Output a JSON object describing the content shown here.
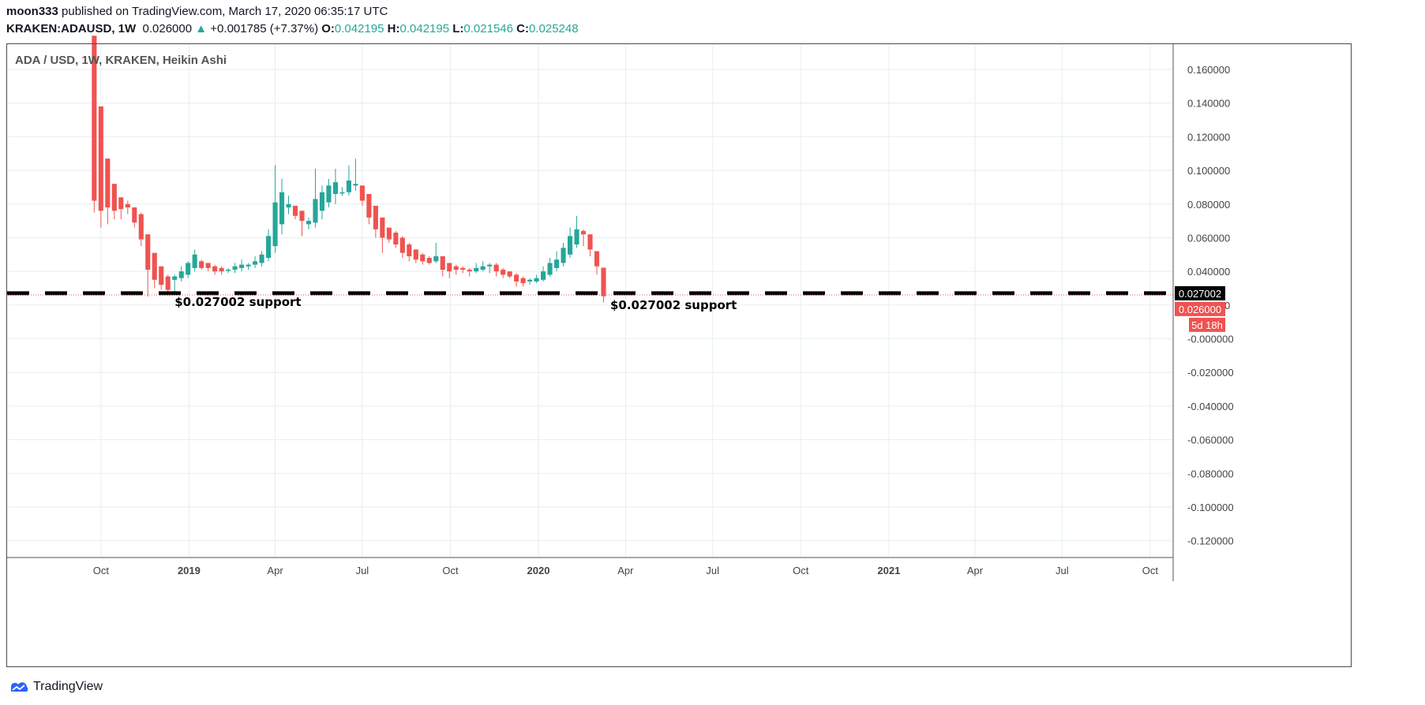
{
  "header": {
    "author": "moon333",
    "published_text": "published on TradingView.com, March 17, 2020 06:35:17 UTC",
    "symbol": "KRAKEN:ADAUSD, 1W",
    "last": "0.026000",
    "change": "+0.001785 (+7.37%)",
    "open_label": "O:",
    "open": "0.042195",
    "high_label": "H:",
    "high": "0.042195",
    "low_label": "L:",
    "low": "0.021546",
    "close_label": "C:",
    "close": "0.025248"
  },
  "footer": {
    "brand": "TradingView"
  },
  "colors": {
    "up": "#26a69a",
    "down": "#ef5350",
    "grid": "#e6eef2",
    "support": "#000000"
  },
  "chart_data": {
    "type": "candlestick",
    "title": "ADA / USD, 1W, KRAKEN, Heikin Ashi",
    "ylim": [
      -0.13,
      0.175
    ],
    "y_ticks": [
      0.16,
      0.14,
      0.12,
      0.1,
      0.08,
      0.06,
      0.04,
      0.02,
      0.0,
      -0.02,
      -0.04,
      -0.06,
      -0.08,
      -0.1,
      -0.12
    ],
    "y_tick_labels": [
      "0.160000",
      "0.140000",
      "0.120000",
      "0.100000",
      "0.080000",
      "0.060000",
      "0.040000",
      "0.020000",
      "-0.000000",
      "-0.020000",
      "-0.040000",
      "-0.060000",
      "-0.080000",
      "-0.100000",
      "-0.120000"
    ],
    "x_ticks": [
      {
        "date": "2018-10-01",
        "label": "Oct",
        "bold": false
      },
      {
        "date": "2019-01-01",
        "label": "2019",
        "bold": true
      },
      {
        "date": "2019-04-01",
        "label": "Apr",
        "bold": false
      },
      {
        "date": "2019-07-01",
        "label": "Jul",
        "bold": false
      },
      {
        "date": "2019-10-01",
        "label": "Oct",
        "bold": false
      },
      {
        "date": "2020-01-01",
        "label": "2020",
        "bold": true
      },
      {
        "date": "2020-04-01",
        "label": "Apr",
        "bold": false
      },
      {
        "date": "2020-07-01",
        "label": "Jul",
        "bold": false
      },
      {
        "date": "2020-10-01",
        "label": "Oct",
        "bold": false
      },
      {
        "date": "2021-01-01",
        "label": "2021",
        "bold": true
      },
      {
        "date": "2021-04-01",
        "label": "Apr",
        "bold": false
      },
      {
        "date": "2021-07-01",
        "label": "Jul",
        "bold": false
      },
      {
        "date": "2021-10-01",
        "label": "Oct",
        "bold": false
      }
    ],
    "xlim": [
      "2018-06-25",
      "2021-10-25"
    ],
    "candles": [
      {
        "date": "2018-09-24",
        "o": 0.18,
        "h": 0.18,
        "l": 0.075,
        "c": 0.082
      },
      {
        "date": "2018-10-01",
        "o": 0.138,
        "h": 0.138,
        "l": 0.066,
        "c": 0.076
      },
      {
        "date": "2018-10-08",
        "o": 0.107,
        "h": 0.107,
        "l": 0.068,
        "c": 0.078
      },
      {
        "date": "2018-10-15",
        "o": 0.092,
        "h": 0.092,
        "l": 0.071,
        "c": 0.076
      },
      {
        "date": "2018-10-22",
        "o": 0.084,
        "h": 0.084,
        "l": 0.071,
        "c": 0.077
      },
      {
        "date": "2018-10-29",
        "o": 0.08,
        "h": 0.082,
        "l": 0.074,
        "c": 0.078
      },
      {
        "date": "2018-11-05",
        "o": 0.078,
        "h": 0.078,
        "l": 0.066,
        "c": 0.069
      },
      {
        "date": "2018-11-12",
        "o": 0.074,
        "h": 0.075,
        "l": 0.055,
        "c": 0.059
      },
      {
        "date": "2018-11-19",
        "o": 0.062,
        "h": 0.062,
        "l": 0.025,
        "c": 0.041
      },
      {
        "date": "2018-11-26",
        "o": 0.051,
        "h": 0.051,
        "l": 0.03,
        "c": 0.035
      },
      {
        "date": "2018-12-03",
        "o": 0.043,
        "h": 0.043,
        "l": 0.029,
        "c": 0.032
      },
      {
        "date": "2018-12-10",
        "o": 0.037,
        "h": 0.038,
        "l": 0.027,
        "c": 0.029
      },
      {
        "date": "2018-12-17",
        "o": 0.035,
        "h": 0.038,
        "l": 0.028,
        "c": 0.037
      },
      {
        "date": "2018-12-24",
        "o": 0.036,
        "h": 0.043,
        "l": 0.034,
        "c": 0.04
      },
      {
        "date": "2018-12-31",
        "o": 0.038,
        "h": 0.046,
        "l": 0.036,
        "c": 0.045
      },
      {
        "date": "2019-01-07",
        "o": 0.042,
        "h": 0.053,
        "l": 0.04,
        "c": 0.05
      },
      {
        "date": "2019-01-14",
        "o": 0.046,
        "h": 0.047,
        "l": 0.041,
        "c": 0.042
      },
      {
        "date": "2019-01-21",
        "o": 0.045,
        "h": 0.045,
        "l": 0.04,
        "c": 0.042
      },
      {
        "date": "2019-01-28",
        "o": 0.043,
        "h": 0.044,
        "l": 0.038,
        "c": 0.04
      },
      {
        "date": "2019-02-04",
        "o": 0.042,
        "h": 0.043,
        "l": 0.038,
        "c": 0.04
      },
      {
        "date": "2019-02-11",
        "o": 0.041,
        "h": 0.042,
        "l": 0.039,
        "c": 0.041
      },
      {
        "date": "2019-02-18",
        "o": 0.041,
        "h": 0.045,
        "l": 0.039,
        "c": 0.043
      },
      {
        "date": "2019-02-25",
        "o": 0.042,
        "h": 0.047,
        "l": 0.04,
        "c": 0.044
      },
      {
        "date": "2019-03-04",
        "o": 0.043,
        "h": 0.045,
        "l": 0.041,
        "c": 0.044
      },
      {
        "date": "2019-03-11",
        "o": 0.044,
        "h": 0.049,
        "l": 0.042,
        "c": 0.046
      },
      {
        "date": "2019-03-18",
        "o": 0.045,
        "h": 0.052,
        "l": 0.043,
        "c": 0.05
      },
      {
        "date": "2019-03-25",
        "o": 0.048,
        "h": 0.065,
        "l": 0.046,
        "c": 0.061
      },
      {
        "date": "2019-04-01",
        "o": 0.055,
        "h": 0.103,
        "l": 0.051,
        "c": 0.081
      },
      {
        "date": "2019-04-08",
        "o": 0.068,
        "h": 0.095,
        "l": 0.062,
        "c": 0.087
      },
      {
        "date": "2019-04-15",
        "o": 0.078,
        "h": 0.085,
        "l": 0.074,
        "c": 0.08
      },
      {
        "date": "2019-04-22",
        "o": 0.079,
        "h": 0.079,
        "l": 0.071,
        "c": 0.073
      },
      {
        "date": "2019-04-29",
        "o": 0.076,
        "h": 0.076,
        "l": 0.061,
        "c": 0.07
      },
      {
        "date": "2019-05-06",
        "o": 0.068,
        "h": 0.072,
        "l": 0.065,
        "c": 0.07
      },
      {
        "date": "2019-05-13",
        "o": 0.069,
        "h": 0.101,
        "l": 0.066,
        "c": 0.083
      },
      {
        "date": "2019-05-20",
        "o": 0.076,
        "h": 0.091,
        "l": 0.071,
        "c": 0.087
      },
      {
        "date": "2019-05-27",
        "o": 0.081,
        "h": 0.095,
        "l": 0.078,
        "c": 0.091
      },
      {
        "date": "2019-06-03",
        "o": 0.086,
        "h": 0.101,
        "l": 0.08,
        "c": 0.093
      },
      {
        "date": "2019-06-10",
        "o": 0.087,
        "h": 0.09,
        "l": 0.085,
        "c": 0.087
      },
      {
        "date": "2019-06-17",
        "o": 0.087,
        "h": 0.103,
        "l": 0.085,
        "c": 0.094
      },
      {
        "date": "2019-06-24",
        "o": 0.091,
        "h": 0.107,
        "l": 0.088,
        "c": 0.092
      },
      {
        "date": "2019-07-01",
        "o": 0.091,
        "h": 0.091,
        "l": 0.079,
        "c": 0.082
      },
      {
        "date": "2019-07-08",
        "o": 0.086,
        "h": 0.086,
        "l": 0.068,
        "c": 0.072
      },
      {
        "date": "2019-07-15",
        "o": 0.079,
        "h": 0.079,
        "l": 0.06,
        "c": 0.065
      },
      {
        "date": "2019-07-22",
        "o": 0.072,
        "h": 0.072,
        "l": 0.051,
        "c": 0.06
      },
      {
        "date": "2019-07-29",
        "o": 0.066,
        "h": 0.066,
        "l": 0.057,
        "c": 0.059
      },
      {
        "date": "2019-08-05",
        "o": 0.063,
        "h": 0.064,
        "l": 0.054,
        "c": 0.056
      },
      {
        "date": "2019-08-12",
        "o": 0.06,
        "h": 0.061,
        "l": 0.048,
        "c": 0.051
      },
      {
        "date": "2019-08-19",
        "o": 0.056,
        "h": 0.057,
        "l": 0.046,
        "c": 0.049
      },
      {
        "date": "2019-08-26",
        "o": 0.053,
        "h": 0.053,
        "l": 0.045,
        "c": 0.047
      },
      {
        "date": "2019-09-02",
        "o": 0.05,
        "h": 0.051,
        "l": 0.044,
        "c": 0.046
      },
      {
        "date": "2019-09-09",
        "o": 0.048,
        "h": 0.049,
        "l": 0.044,
        "c": 0.045
      },
      {
        "date": "2019-09-16",
        "o": 0.046,
        "h": 0.057,
        "l": 0.045,
        "c": 0.049
      },
      {
        "date": "2019-09-23",
        "o": 0.049,
        "h": 0.049,
        "l": 0.037,
        "c": 0.041
      },
      {
        "date": "2019-09-30",
        "o": 0.045,
        "h": 0.045,
        "l": 0.036,
        "c": 0.04
      },
      {
        "date": "2019-10-07",
        "o": 0.043,
        "h": 0.044,
        "l": 0.038,
        "c": 0.041
      },
      {
        "date": "2019-10-14",
        "o": 0.042,
        "h": 0.043,
        "l": 0.039,
        "c": 0.041
      },
      {
        "date": "2019-10-21",
        "o": 0.041,
        "h": 0.042,
        "l": 0.037,
        "c": 0.04
      },
      {
        "date": "2019-10-28",
        "o": 0.04,
        "h": 0.045,
        "l": 0.039,
        "c": 0.042
      },
      {
        "date": "2019-11-04",
        "o": 0.041,
        "h": 0.046,
        "l": 0.04,
        "c": 0.043
      },
      {
        "date": "2019-11-11",
        "o": 0.043,
        "h": 0.045,
        "l": 0.039,
        "c": 0.044
      },
      {
        "date": "2019-11-18",
        "o": 0.044,
        "h": 0.045,
        "l": 0.037,
        "c": 0.04
      },
      {
        "date": "2019-11-25",
        "o": 0.041,
        "h": 0.042,
        "l": 0.036,
        "c": 0.038
      },
      {
        "date": "2019-12-02",
        "o": 0.04,
        "h": 0.04,
        "l": 0.036,
        "c": 0.037
      },
      {
        "date": "2019-12-09",
        "o": 0.038,
        "h": 0.039,
        "l": 0.031,
        "c": 0.034
      },
      {
        "date": "2019-12-16",
        "o": 0.036,
        "h": 0.037,
        "l": 0.031,
        "c": 0.033
      },
      {
        "date": "2019-12-23",
        "o": 0.034,
        "h": 0.036,
        "l": 0.032,
        "c": 0.035
      },
      {
        "date": "2019-12-30",
        "o": 0.034,
        "h": 0.038,
        "l": 0.033,
        "c": 0.036
      },
      {
        "date": "2020-01-06",
        "o": 0.035,
        "h": 0.043,
        "l": 0.034,
        "c": 0.04
      },
      {
        "date": "2020-01-13",
        "o": 0.038,
        "h": 0.048,
        "l": 0.037,
        "c": 0.045
      },
      {
        "date": "2020-01-20",
        "o": 0.042,
        "h": 0.052,
        "l": 0.04,
        "c": 0.047
      },
      {
        "date": "2020-01-27",
        "o": 0.045,
        "h": 0.057,
        "l": 0.043,
        "c": 0.054
      },
      {
        "date": "2020-02-03",
        "o": 0.05,
        "h": 0.066,
        "l": 0.048,
        "c": 0.061
      },
      {
        "date": "2020-02-10",
        "o": 0.056,
        "h": 0.073,
        "l": 0.054,
        "c": 0.065
      },
      {
        "date": "2020-02-17",
        "o": 0.064,
        "h": 0.065,
        "l": 0.055,
        "c": 0.062
      },
      {
        "date": "2020-02-24",
        "o": 0.062,
        "h": 0.062,
        "l": 0.049,
        "c": 0.053
      },
      {
        "date": "2020-03-02",
        "o": 0.052,
        "h": 0.052,
        "l": 0.038,
        "c": 0.043
      },
      {
        "date": "2020-03-09",
        "o": 0.042195,
        "h": 0.042195,
        "l": 0.021546,
        "c": 0.025248
      }
    ],
    "support": {
      "value": 0.027002,
      "label": "0.027002",
      "annotations": [
        "$0.027002 support",
        "$0.027002 support"
      ]
    },
    "last_price": {
      "value": 0.026,
      "label": "0.026000",
      "countdown": "5d 18h"
    }
  }
}
